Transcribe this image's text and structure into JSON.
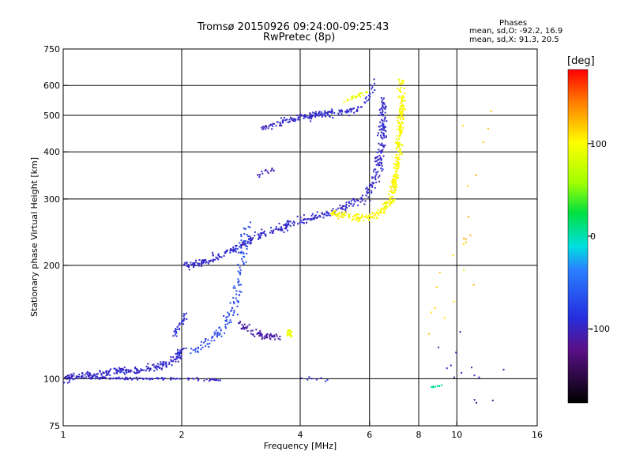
{
  "title_line1": "Tromsø 20150926 09:24:00-09:25:43",
  "title_line2": "RwPretec (8p)",
  "stats": {
    "title": "Phases",
    "line1": "mean, sd,O: -92.2, 16.9",
    "line2": "mean, sd,X:  91.3, 20.5"
  },
  "colorbar": {
    "unit": "[deg]",
    "ticks": [
      "100",
      "0",
      "-100"
    ],
    "tick_values": [
      100,
      0,
      -100
    ],
    "range": [
      -180,
      180
    ]
  },
  "chart_data": {
    "type": "scatter",
    "title": "Tromsø 20150926 09:24:00-09:25:43 RwPretec (8p)",
    "xlabel": "Frequency [MHz]",
    "ylabel": "Stationary phase Virtual Height [km]",
    "xscale": "log",
    "yscale": "log",
    "xlim": [
      1,
      16
    ],
    "ylim": [
      75,
      750
    ],
    "xticks": [
      1,
      2,
      4,
      6,
      8,
      10,
      16
    ],
    "xtick_labels": [
      "1",
      "2",
      "4",
      "6",
      "8",
      "10",
      "16"
    ],
    "yticks": [
      75,
      100,
      200,
      300,
      400,
      500,
      600,
      750
    ],
    "ytick_labels": [
      "75",
      "100",
      "200",
      "300",
      "400",
      "500",
      "600",
      "750"
    ],
    "xgrid": [
      2,
      4,
      6,
      8,
      10
    ],
    "ygrid": [
      100,
      200,
      300,
      400,
      500,
      600
    ],
    "grid": true,
    "color_variable": "phase [deg]",
    "trace_groups": [
      {
        "path": [
          [
            1.0,
            100
          ],
          [
            1.3,
            104
          ],
          [
            1.6,
            106
          ],
          [
            1.8,
            109
          ],
          [
            1.95,
            113
          ],
          [
            2.0,
            120
          ]
        ],
        "count": 220,
        "phase": -95,
        "jitter": 0.035
      },
      {
        "path": [
          [
            1.0,
            101
          ],
          [
            1.5,
            100
          ],
          [
            2.0,
            100
          ],
          [
            2.5,
            99
          ]
        ],
        "count": 120,
        "phase": -98,
        "jitter": 0.012
      },
      {
        "path": [
          [
            1.9,
            130
          ],
          [
            2.0,
            140
          ],
          [
            2.05,
            150
          ]
        ],
        "count": 30,
        "phase": -92,
        "jitter": 0.03
      },
      {
        "path": [
          [
            2.05,
            200
          ],
          [
            2.3,
            205
          ],
          [
            2.6,
            215
          ],
          [
            2.9,
            230
          ],
          [
            3.2,
            242
          ],
          [
            4.0,
            262
          ],
          [
            5.0,
            280
          ],
          [
            5.8,
            300
          ],
          [
            6.2,
            340
          ],
          [
            6.4,
            400
          ],
          [
            6.5,
            470
          ],
          [
            6.5,
            560
          ]
        ],
        "count": 460,
        "phase": -95,
        "jitter": 0.04
      },
      {
        "path": [
          [
            2.1,
            118
          ],
          [
            2.5,
            132
          ],
          [
            2.7,
            150
          ],
          [
            2.75,
            170
          ],
          [
            2.8,
            190
          ],
          [
            2.85,
            210
          ],
          [
            2.9,
            235
          ],
          [
            2.95,
            260
          ]
        ],
        "count": 140,
        "phase": -70,
        "jitter": 0.045
      },
      {
        "path": [
          [
            2.8,
            140
          ],
          [
            3.2,
            130
          ],
          [
            3.6,
            128
          ]
        ],
        "count": 70,
        "phase": -110,
        "jitter": 0.035
      },
      {
        "path": [
          [
            3.2,
            460
          ],
          [
            3.6,
            480
          ],
          [
            4.0,
            495
          ],
          [
            4.5,
            505
          ],
          [
            5.2,
            515
          ]
        ],
        "count": 130,
        "phase": -95,
        "jitter": 0.03
      },
      {
        "path": [
          [
            4.0,
            490
          ],
          [
            5.0,
            500
          ],
          [
            5.8,
            530
          ],
          [
            6.2,
            620
          ]
        ],
        "count": 50,
        "phase": -92,
        "jitter": 0.03
      },
      {
        "path": [
          [
            3.1,
            345
          ],
          [
            3.4,
            360
          ]
        ],
        "count": 15,
        "phase": -100,
        "jitter": 0.02
      },
      {
        "path": [
          [
            4.8,
            275
          ],
          [
            5.5,
            268
          ],
          [
            6.1,
            270
          ],
          [
            6.5,
            280
          ],
          [
            6.8,
            300
          ],
          [
            7.0,
            340
          ],
          [
            7.1,
            400
          ],
          [
            7.2,
            480
          ],
          [
            7.25,
            560
          ],
          [
            7.2,
            620
          ]
        ],
        "count": 380,
        "phase": 100,
        "jitter": 0.03
      },
      {
        "path": [
          [
            5.2,
            545
          ],
          [
            5.6,
            565
          ],
          [
            5.9,
            580
          ]
        ],
        "count": 25,
        "phase": 95,
        "jitter": 0.02
      },
      {
        "path": [
          [
            3.7,
            135
          ],
          [
            3.8,
            130
          ]
        ],
        "count": 25,
        "phase": 95,
        "jitter": 0.02
      },
      {
        "path": [
          [
            8.6,
            95
          ],
          [
            9.2,
            96
          ]
        ],
        "count": 10,
        "phase": 5,
        "jitter": 0.01
      },
      {
        "path": [
          [
            4.0,
            100
          ],
          [
            4.8,
            100
          ]
        ],
        "count": 8,
        "phase": -90,
        "jitter": 0.02
      },
      {
        "path": [
          [
            9.5,
            140
          ],
          [
            12.0,
            560
          ]
        ],
        "count": 22,
        "phase": 120,
        "jitter": 0.2
      },
      {
        "path": [
          [
            9.6,
            120
          ],
          [
            12.5,
            90
          ]
        ],
        "count": 14,
        "phase": -105,
        "jitter": 0.2
      }
    ]
  }
}
